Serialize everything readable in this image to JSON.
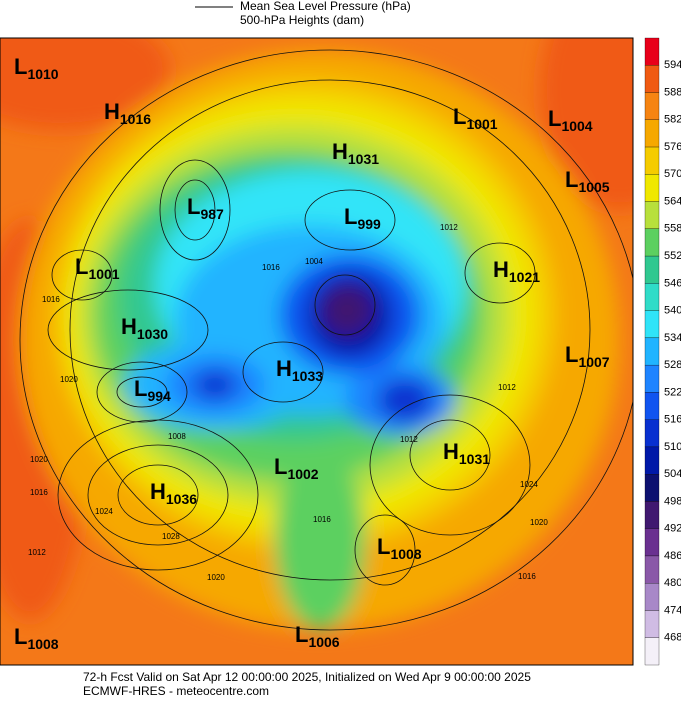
{
  "legend": {
    "items": [
      "Mean Sea Level Pressure (hPa)",
      "500-hPa Heights (dam)"
    ]
  },
  "colorbar": {
    "ticks": [
      594,
      588,
      582,
      576,
      570,
      564,
      558,
      552,
      546,
      540,
      534,
      528,
      522,
      516,
      510,
      504,
      498,
      492,
      486,
      480,
      474,
      468
    ],
    "colors": [
      "#e8001a",
      "#f05a12",
      "#f68412",
      "#f6a800",
      "#f5cc00",
      "#f0e800",
      "#b8e03c",
      "#5cd060",
      "#30c890",
      "#30dcc8",
      "#30e4f8",
      "#20b4ff",
      "#1e84ff",
      "#1054f0",
      "#0830d0",
      "#0018a8",
      "#0c1070",
      "#401870",
      "#6a3090",
      "#8a58a8",
      "#a888c8",
      "#d0bce4",
      "#f4f0f8"
    ]
  },
  "centers": [
    {
      "type": "L",
      "value": "1010"
    },
    {
      "type": "H",
      "value": "1016"
    },
    {
      "type": "L",
      "value": "1001"
    },
    {
      "type": "L",
      "value": "1004"
    },
    {
      "type": "H",
      "value": "1031"
    },
    {
      "type": "L",
      "value": "1005"
    },
    {
      "type": "L",
      "value": "987"
    },
    {
      "type": "L",
      "value": "999"
    },
    {
      "type": "L",
      "value": "1001"
    },
    {
      "type": "H",
      "value": "1021"
    },
    {
      "type": "H",
      "value": "1030"
    },
    {
      "type": "L",
      "value": "1007"
    },
    {
      "type": "H",
      "value": "1033"
    },
    {
      "type": "L",
      "value": "994"
    },
    {
      "type": "H",
      "value": "1031"
    },
    {
      "type": "L",
      "value": "1002"
    },
    {
      "type": "H",
      "value": "1036"
    },
    {
      "type": "L",
      "value": "1008"
    },
    {
      "type": "L",
      "value": "1008"
    },
    {
      "type": "L",
      "value": "1006"
    }
  ],
  "isobar_labels": [
    "1016",
    "1020",
    "1008",
    "1020",
    "1016",
    "1012",
    "1024",
    "1028",
    "1020",
    "1016",
    "1004",
    "1012",
    "1012",
    "1012",
    "1024",
    "1020",
    "1016",
    "1016"
  ],
  "footer": {
    "line1": "72-h Fcst Valid on Sat Apr 12 00:00:00 2025, Initialized on Wed Apr  9 00:00:00 2025",
    "line2": "ECMWF-HRES  - meteocentre.com"
  }
}
